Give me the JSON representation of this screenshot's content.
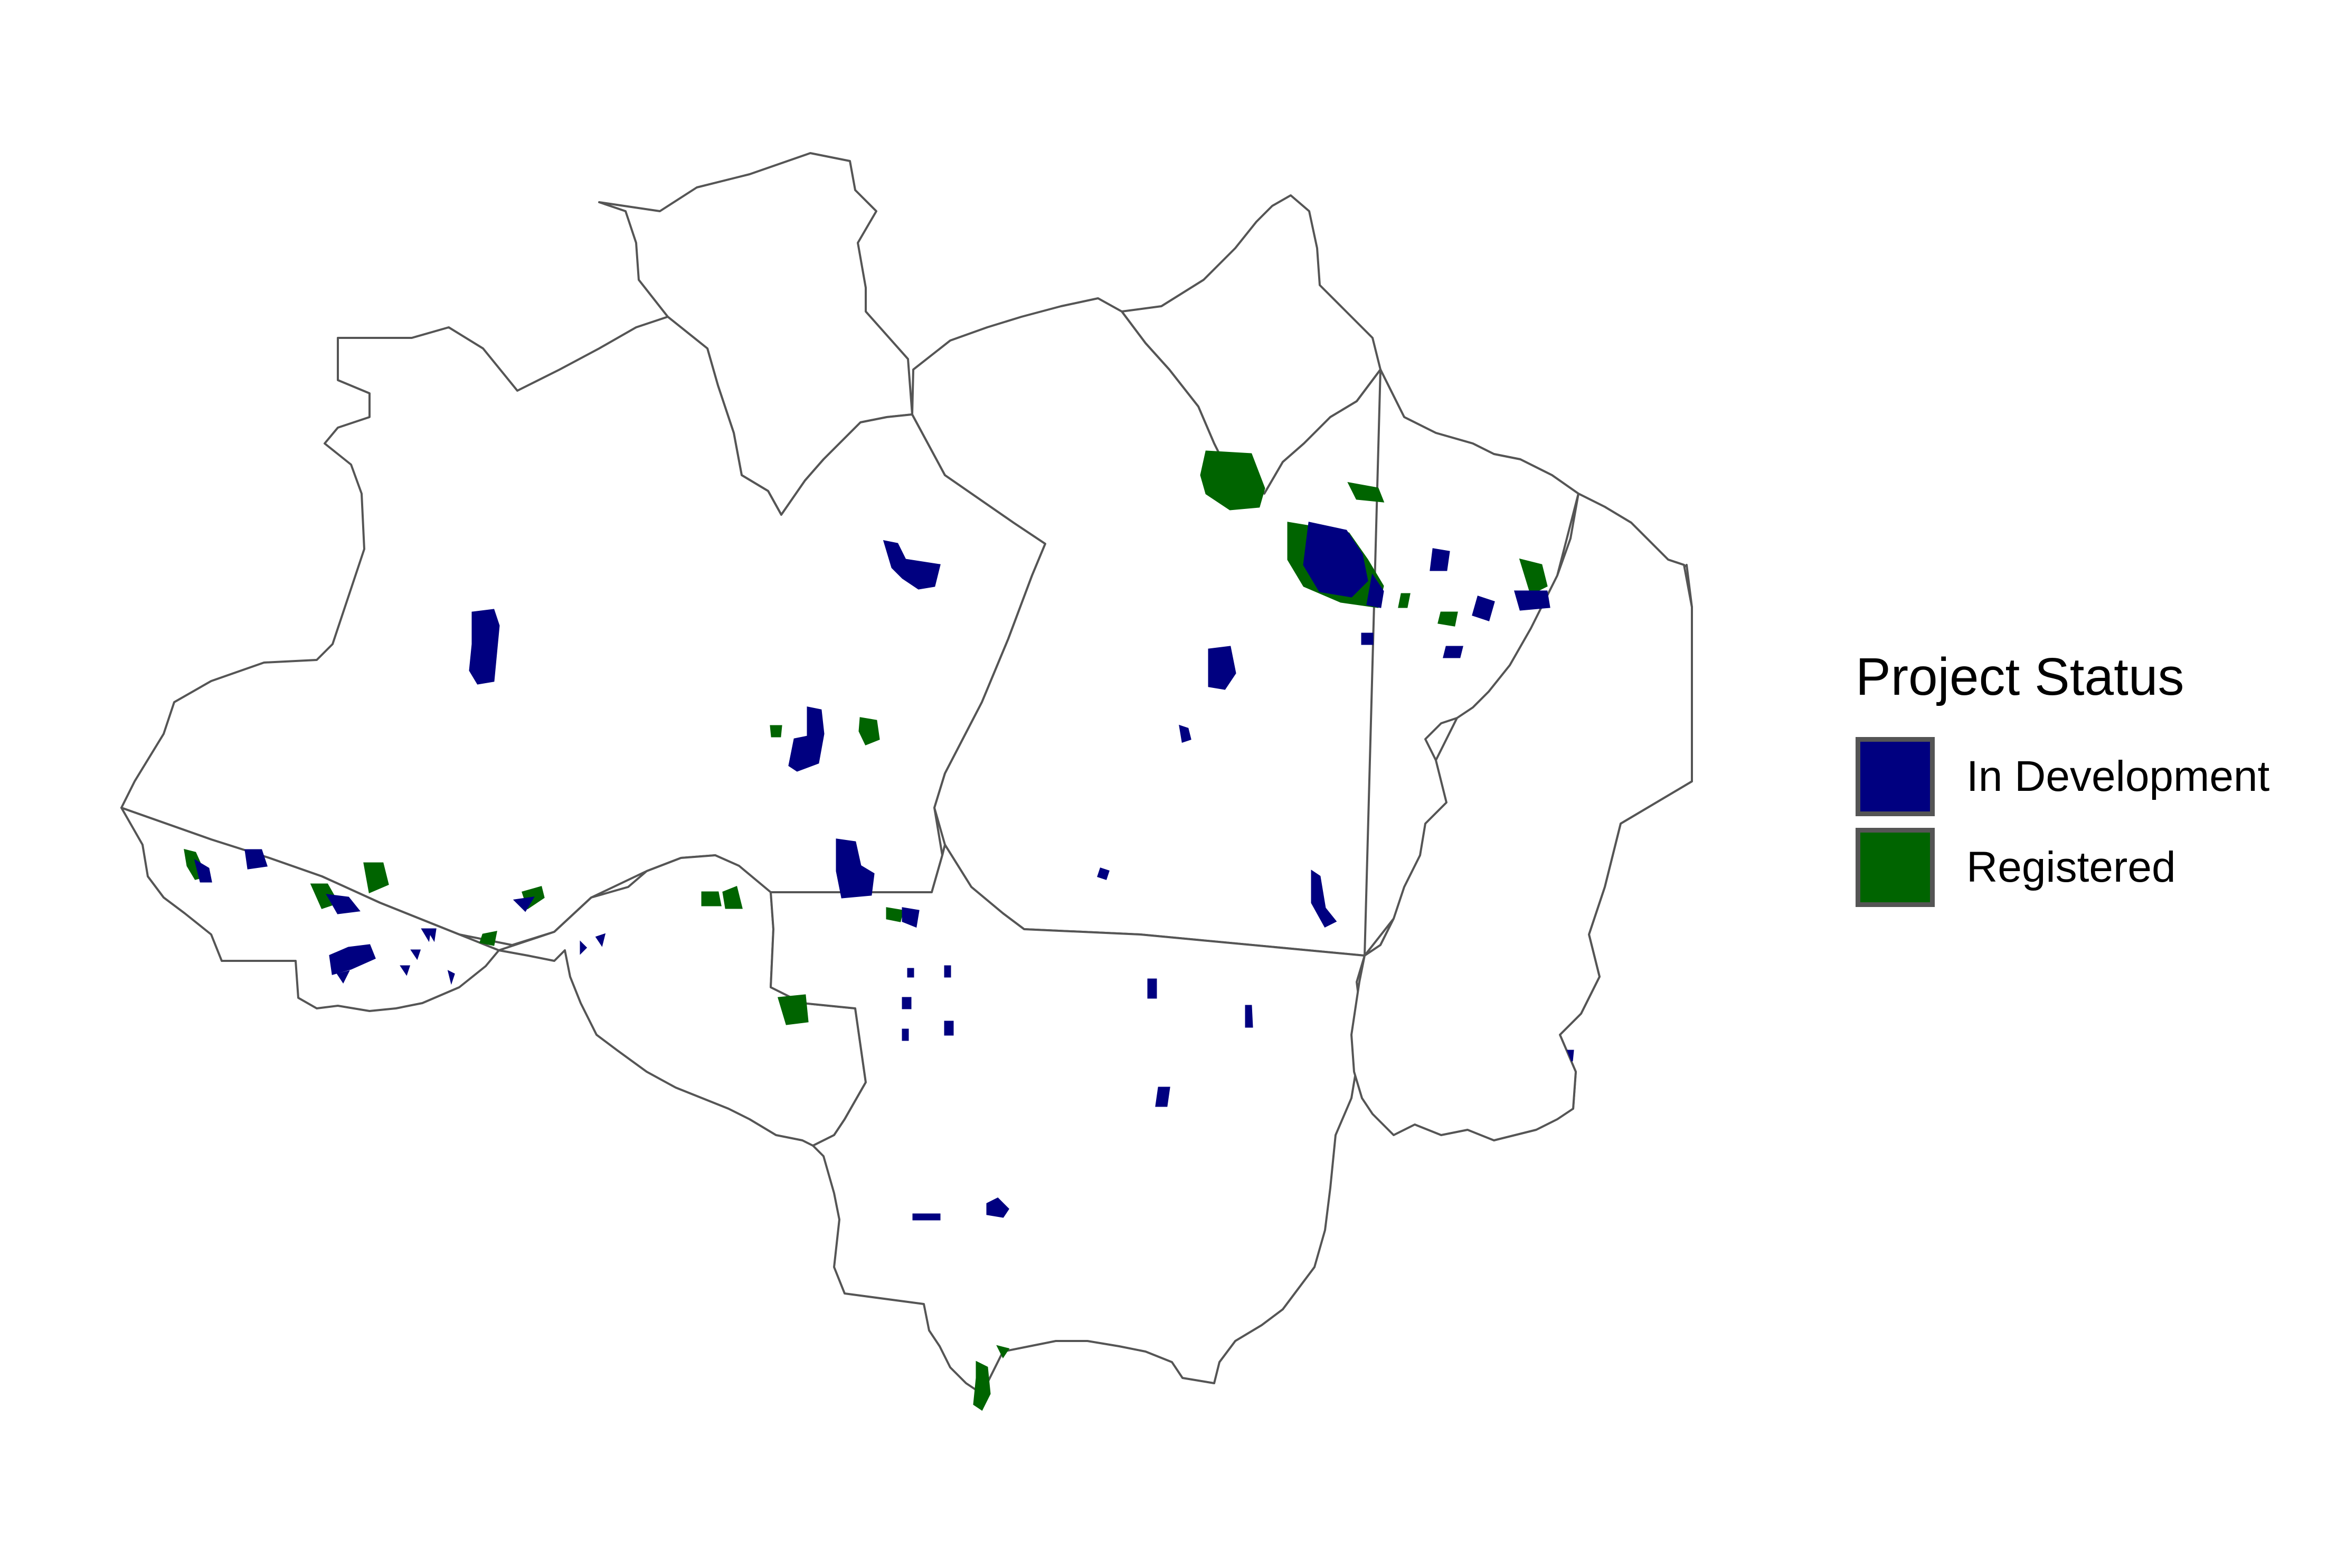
{
  "map": {
    "legend": {
      "title": "Project Status",
      "items": [
        {
          "label": "In Development",
          "color": "#000080"
        },
        {
          "label": "Registered",
          "color": "#006400"
        }
      ]
    },
    "boundary_color": "#555555",
    "background_color": "#ffffff"
  }
}
